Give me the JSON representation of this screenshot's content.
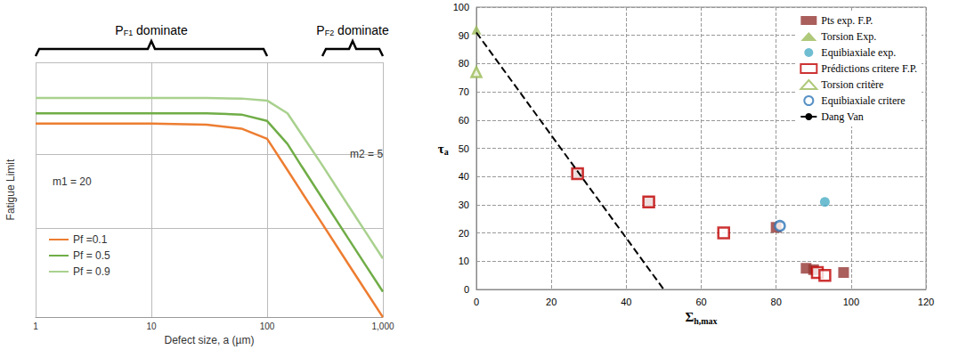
{
  "chart_data": [
    {
      "type": "line",
      "xlabel": "Defect size, a (µm)",
      "ylabel": "Fatigue Limit",
      "log": "x",
      "grid": true,
      "tick_labels": "x",
      "legend": "left",
      "xlim": [
        1,
        1000
      ],
      "xticks": [
        1,
        10,
        100,
        1000
      ],
      "ylim": [
        0,
        100
      ],
      "yticks": [
        0,
        35,
        64,
        100
      ],
      "x": [
        1,
        10,
        30,
        60,
        100,
        150,
        200,
        300,
        500,
        700,
        1000
      ],
      "series": [
        {
          "name": "Pf =0.1",
          "color": "#ed7d31",
          "values": [
            76,
            76,
            75.5,
            74,
            70,
            57.7,
            48.9,
            36.6,
            21,
            10.8,
            0
          ]
        },
        {
          "name": "Pf = 0.5",
          "color": "#70ad47",
          "values": [
            80,
            80,
            80,
            79.5,
            77,
            68,
            59,
            46.6,
            31,
            20.8,
            10
          ]
        },
        {
          "name": "Pf = 0.9",
          "color": "#a9d18e",
          "values": [
            86,
            86,
            86,
            85.8,
            85,
            80,
            71.5,
            59.6,
            44,
            33.8,
            23
          ]
        }
      ],
      "annotations": [
        {
          "text": "m1 = 20",
          "x": 1.4,
          "y": 53
        },
        {
          "text": "m2 = 5",
          "x": 520,
          "y": 64
        }
      ],
      "brackets": [
        {
          "text": "P",
          "sub": "F1",
          "suffix": " dominate",
          "from": 1,
          "to": 100
        },
        {
          "text": "P",
          "sub": "F2",
          "suffix": " dominate",
          "from": 300,
          "to": 1000
        }
      ]
    },
    {
      "type": "scatter",
      "xlabel": {
        "text": "Σ",
        "sub": "h,max"
      },
      "ylabel": {
        "text": "τ",
        "sub": "a"
      },
      "grid": true,
      "legend": "upper right",
      "xlim": [
        0,
        120
      ],
      "xticks": [
        0,
        20,
        40,
        60,
        80,
        100,
        120
      ],
      "ylim": [
        0,
        100
      ],
      "yticks": [
        0,
        10,
        20,
        30,
        40,
        50,
        60,
        70,
        80,
        90,
        100
      ],
      "series": [
        {
          "name": "Pts exp. F.P.",
          "color": "#953735",
          "marker": "square",
          "x": [
            27,
            46,
            80,
            88,
            90,
            98
          ],
          "values": [
            41,
            31,
            22,
            7.5,
            7,
            6
          ]
        },
        {
          "name": "Torsion Exp.",
          "color": "#9bbb59",
          "marker": "triangle",
          "x": [
            0,
            0
          ],
          "values": [
            92,
            77
          ]
        },
        {
          "name": "Equibiaxiale exp.",
          "color": "#4bacc6",
          "marker": "circle",
          "x": [
            93
          ],
          "values": [
            31
          ]
        },
        {
          "name": "Prédictions critere F.P.",
          "color": "#c00000",
          "marker": "square-open",
          "x": [
            27,
            46,
            66,
            91,
            93
          ],
          "values": [
            41,
            31,
            20,
            6,
            5
          ]
        },
        {
          "name": "Torsion critère",
          "color": "#9bbb59",
          "marker": "triangle-open",
          "x": [
            0
          ],
          "values": [
            77
          ]
        },
        {
          "name": "Equibiaxiale critere",
          "color": "#2e75b6",
          "marker": "circle-open",
          "x": [
            81
          ],
          "values": [
            22.5
          ]
        },
        {
          "name": "Dang Van",
          "color": "#000000",
          "type": "line",
          "line_style": "dashed",
          "x": [
            0,
            50
          ],
          "values": [
            91,
            0
          ]
        }
      ]
    }
  ]
}
